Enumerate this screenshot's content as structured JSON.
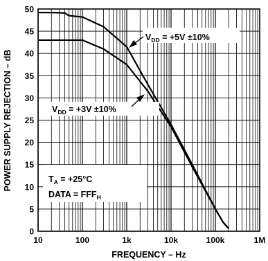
{
  "chart_data": {
    "type": "line",
    "x_scale": "log",
    "xlim": [
      10,
      1000000
    ],
    "ylim": [
      0,
      50
    ],
    "grid": true,
    "xlabel": "FREQUENCY – Hz",
    "ylabel": "POWER SUPPLY REJECTION – dB",
    "x_ticks": [
      "10",
      "100",
      "1k",
      "10k",
      "100k",
      "1M"
    ],
    "y_ticks": [
      "0",
      "5",
      "10",
      "15",
      "20",
      "25",
      "30",
      "35",
      "40",
      "45",
      "50"
    ],
    "series": [
      {
        "name": "V_DD = +5V ±10%",
        "x": [
          10,
          20,
          40,
          50,
          100,
          300,
          1000,
          3000,
          10000,
          30000,
          100000,
          150000,
          200000
        ],
        "y": [
          49.2,
          49.2,
          49.1,
          48.5,
          48.2,
          46,
          41.5,
          33,
          24,
          15,
          5,
          2,
          0.6
        ]
      },
      {
        "name": "V_DD = +3V ±10%",
        "x": [
          10,
          20,
          50,
          100,
          300,
          1000,
          3000,
          10000,
          30000,
          100000,
          150000,
          200000
        ],
        "y": [
          43,
          43,
          43,
          43,
          41,
          37.5,
          31.5,
          23.5,
          14.5,
          5,
          2,
          0.6
        ]
      }
    ],
    "annotations": {
      "vdd5": {
        "main": "V",
        "sub": "DD",
        "rest": " = +5V ±10%"
      },
      "vdd3": {
        "main": "V",
        "sub": "DD",
        "rest": " = +3V ±10%"
      },
      "temp": {
        "main": "T",
        "sub": "A",
        "rest": " = +25°C"
      },
      "data": {
        "main": "DATA = FFF",
        "sub": "H"
      }
    }
  }
}
